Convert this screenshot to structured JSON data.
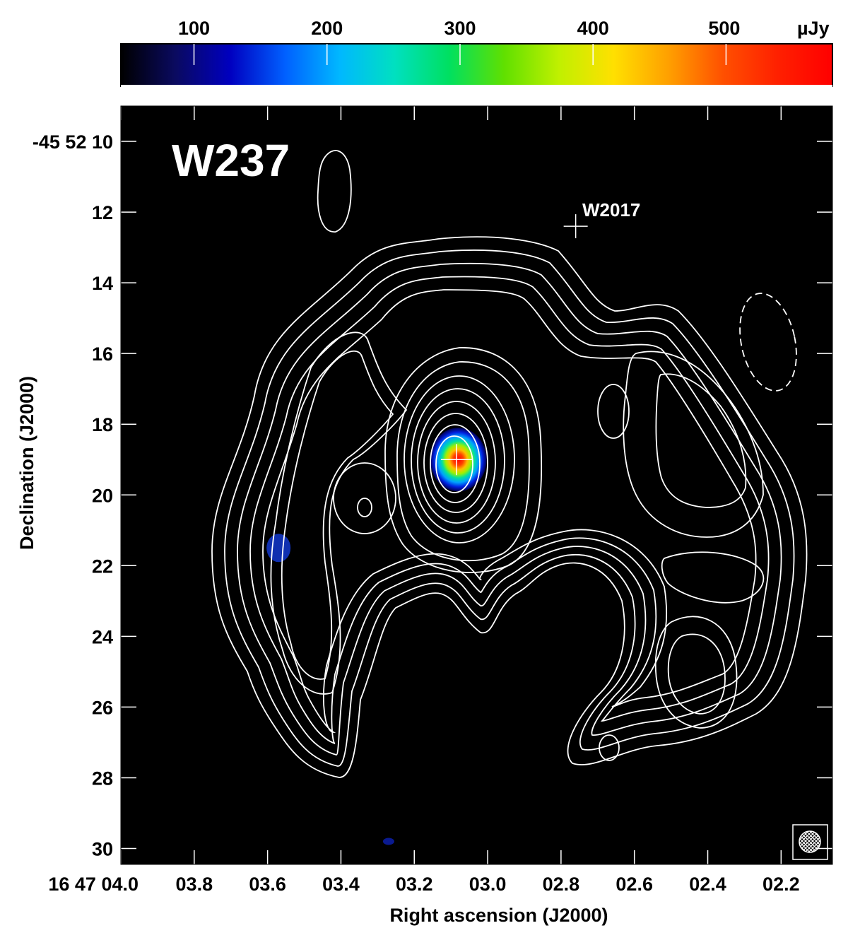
{
  "chart_data": {
    "type": "heatmap",
    "title": "W237",
    "xlabel": "Right ascension (J2000)",
    "ylabel": "Declination (J2000)",
    "xlim": [
      4.0,
      2.06
    ],
    "ylim": [
      30.45,
      9.0
    ],
    "x_ticks": [
      {
        "value": 4.0,
        "label": "16 47 04.0"
      },
      {
        "value": 3.8,
        "label": "03.8"
      },
      {
        "value": 3.6,
        "label": "03.6"
      },
      {
        "value": 3.4,
        "label": "03.4"
      },
      {
        "value": 3.2,
        "label": "03.2"
      },
      {
        "value": 3.0,
        "label": "03.0"
      },
      {
        "value": 2.8,
        "label": "02.8"
      },
      {
        "value": 2.6,
        "label": "02.6"
      },
      {
        "value": 2.4,
        "label": "02.4"
      },
      {
        "value": 2.2,
        "label": "02.2"
      }
    ],
    "y_ticks": [
      {
        "value": 10,
        "label": "-45 52 10"
      },
      {
        "value": 12,
        "label": "12"
      },
      {
        "value": 14,
        "label": "14"
      },
      {
        "value": 16,
        "label": "16"
      },
      {
        "value": 18,
        "label": "18"
      },
      {
        "value": 20,
        "label": "20"
      },
      {
        "value": 22,
        "label": "22"
      },
      {
        "value": 24,
        "label": "24"
      },
      {
        "value": 26,
        "label": "26"
      },
      {
        "value": 28,
        "label": "28"
      },
      {
        "value": 30,
        "label": "30"
      }
    ],
    "colorbar": {
      "unit": "µJy",
      "range": [
        45,
        580
      ],
      "ticks": [
        100,
        200,
        300,
        400,
        500
      ],
      "colormap": [
        "#000000",
        "#0a0a60",
        "#0000c0",
        "#0060ff",
        "#00b8ff",
        "#00e0c0",
        "#00e060",
        "#60e000",
        "#c0f000",
        "#ffe000",
        "#ffa000",
        "#ff5000",
        "#ff2000",
        "#ff0000"
      ]
    },
    "background_color": "#000000",
    "contour_color": "#ffffff",
    "sources": [
      {
        "label": "W2017",
        "ra": 2.76,
        "dec": 12.4
      },
      {
        "label": "",
        "ra": 3.085,
        "dec": 19.0
      }
    ],
    "emission_blobs": [
      {
        "ra": 3.08,
        "dec": 19.0,
        "peak": 540
      },
      {
        "ra": 3.57,
        "dec": 21.5,
        "peak": 110
      },
      {
        "ra": 3.27,
        "dec": 29.8,
        "peak": 90
      }
    ],
    "beam": {
      "position": "bottom-right",
      "hatched": true
    }
  }
}
